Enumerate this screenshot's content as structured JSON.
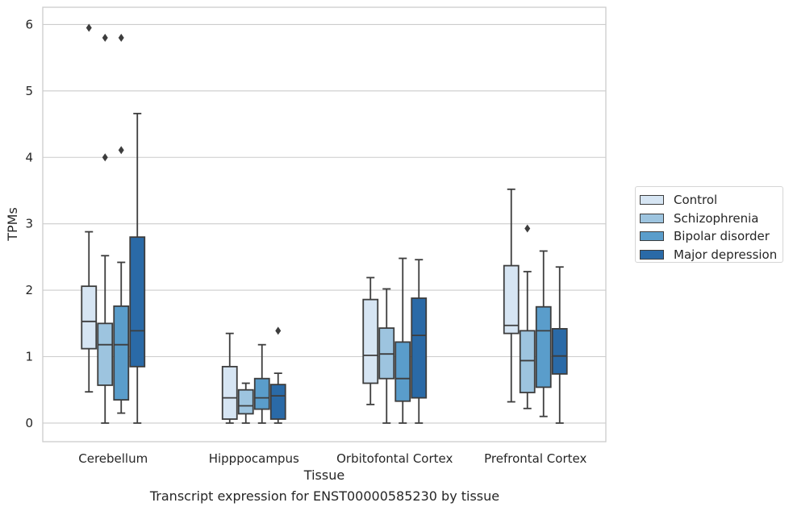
{
  "chart_data": {
    "type": "boxplot",
    "caption": "Transcript expression for ENST00000585230 by tissue",
    "xlabel": "Tissue",
    "ylabel": "TPMs",
    "ylim": [
      -0.28,
      6.26
    ],
    "yticks": [
      0,
      1,
      2,
      3,
      4,
      5,
      6
    ],
    "grid": "horizontal",
    "legend_position": "right",
    "categories": [
      "Cerebellum",
      "Hipppocampus",
      "Orbitofontal Cortex",
      "Prefrontal Cortex"
    ],
    "series": [
      {
        "name": "Control",
        "color": "#d6e5f3",
        "boxes": [
          {
            "whislo": 0.47,
            "q1": 1.12,
            "med": 1.53,
            "q3": 2.06,
            "whishi": 2.88,
            "fliers": [
              5.95
            ]
          },
          {
            "whislo": 0.0,
            "q1": 0.06,
            "med": 0.38,
            "q3": 0.85,
            "whishi": 1.35,
            "fliers": []
          },
          {
            "whislo": 0.28,
            "q1": 0.6,
            "med": 1.02,
            "q3": 1.86,
            "whishi": 2.19,
            "fliers": []
          },
          {
            "whislo": 0.32,
            "q1": 1.35,
            "med": 1.47,
            "q3": 2.37,
            "whishi": 3.52,
            "fliers": []
          }
        ]
      },
      {
        "name": "Schizophrenia",
        "color": "#9dc4df",
        "boxes": [
          {
            "whislo": 0.0,
            "q1": 0.57,
            "med": 1.18,
            "q3": 1.5,
            "whishi": 2.52,
            "fliers": [
              5.8,
              4.0
            ]
          },
          {
            "whislo": 0.0,
            "q1": 0.14,
            "med": 0.26,
            "q3": 0.5,
            "whishi": 0.6,
            "fliers": []
          },
          {
            "whislo": 0.0,
            "q1": 0.67,
            "med": 1.04,
            "q3": 1.43,
            "whishi": 2.02,
            "fliers": []
          },
          {
            "whislo": 0.22,
            "q1": 0.46,
            "med": 0.94,
            "q3": 1.39,
            "whishi": 2.28,
            "fliers": [
              2.93
            ]
          }
        ]
      },
      {
        "name": "Bipolar disorder",
        "color": "#5a9dcb",
        "boxes": [
          {
            "whislo": 0.15,
            "q1": 0.35,
            "med": 1.18,
            "q3": 1.76,
            "whishi": 2.42,
            "fliers": [
              5.8,
              4.11
            ]
          },
          {
            "whislo": 0.0,
            "q1": 0.21,
            "med": 0.38,
            "q3": 0.67,
            "whishi": 1.18,
            "fliers": []
          },
          {
            "whislo": 0.0,
            "q1": 0.33,
            "med": 0.67,
            "q3": 1.22,
            "whishi": 2.48,
            "fliers": []
          },
          {
            "whislo": 0.1,
            "q1": 0.54,
            "med": 1.39,
            "q3": 1.75,
            "whishi": 2.59,
            "fliers": []
          }
        ]
      },
      {
        "name": "Major depression",
        "color": "#2a6aa7",
        "boxes": [
          {
            "whislo": 0.0,
            "q1": 0.85,
            "med": 1.39,
            "q3": 2.8,
            "whishi": 4.66,
            "fliers": []
          },
          {
            "whislo": 0.0,
            "q1": 0.06,
            "med": 0.41,
            "q3": 0.58,
            "whishi": 0.75,
            "fliers": [
              1.39
            ]
          },
          {
            "whislo": 0.0,
            "q1": 0.38,
            "med": 1.32,
            "q3": 1.88,
            "whishi": 2.46,
            "fliers": []
          },
          {
            "whislo": 0.0,
            "q1": 0.74,
            "med": 1.01,
            "q3": 1.42,
            "whishi": 2.35,
            "fliers": []
          }
        ]
      }
    ]
  }
}
